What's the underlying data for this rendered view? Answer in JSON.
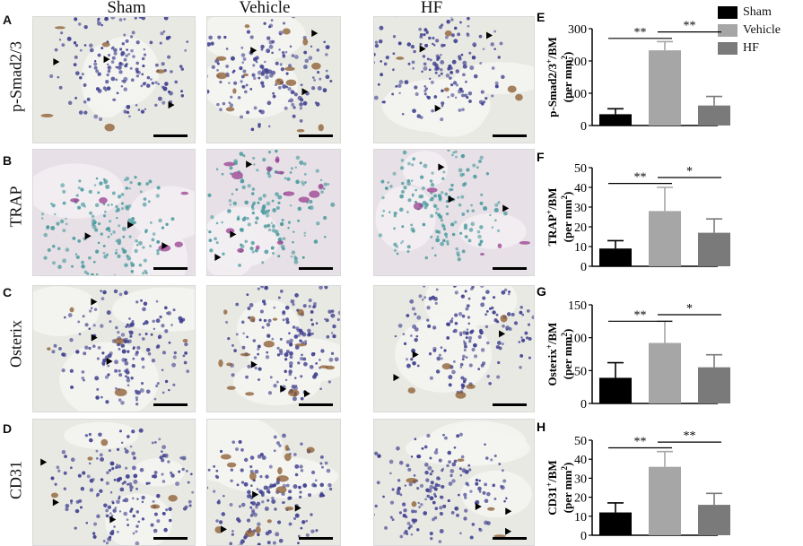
{
  "columns": [
    "Sham",
    "Vehicle",
    "HF"
  ],
  "rows": [
    {
      "letter": "A",
      "label": "p-Smad2/3"
    },
    {
      "letter": "B",
      "label": "TRAP"
    },
    {
      "letter": "C",
      "label": "Osterix"
    },
    {
      "letter": "D",
      "label": "CD31"
    }
  ],
  "legend": [
    {
      "label": "Sham",
      "color": "#000000"
    },
    {
      "label": "Vehicle",
      "color": "#a6a6a6"
    },
    {
      "label": "HF",
      "color": "#7a7a7a"
    }
  ],
  "stain_styles": {
    "ihc": {
      "bg": "#e9e9e4",
      "tissue": "#f4f4f0",
      "nuclei": "#3e3f8e",
      "positive": "#8a5a2e"
    },
    "trap": {
      "bg": "#e7e1e7",
      "tissue": "#f2eef2",
      "nuclei": "#4a9a9e",
      "positive": "#9a3d8f"
    }
  },
  "chart_data": [
    {
      "letter": "E",
      "type": "bar",
      "categories": [
        "Sham",
        "Vehicle",
        "HF"
      ],
      "values": [
        35,
        233,
        62
      ],
      "errors": [
        17,
        27,
        28
      ],
      "ylabel_main": "p-Smad2/3",
      "ylabel_sup": "+",
      "ylabel_tail": "/BM",
      "ylabel_unit": "(per mm",
      "ylabel_unit_sup": "2",
      "ylabel_unit_tail": ")",
      "ylim": [
        0,
        300
      ],
      "yticks": [
        0,
        100,
        200,
        300
      ],
      "significance": [
        {
          "from": 0,
          "to": 1,
          "label": "**",
          "y": 270
        },
        {
          "from": 1,
          "to": 2,
          "label": "**",
          "y": 290
        }
      ]
    },
    {
      "letter": "F",
      "type": "bar",
      "categories": [
        "Sham",
        "Vehicle",
        "HF"
      ],
      "values": [
        9,
        28,
        17
      ],
      "errors": [
        4,
        12,
        7
      ],
      "ylabel_main": "TRAP",
      "ylabel_sup": "+",
      "ylabel_tail": "/BM",
      "ylabel_unit": "(per mm",
      "ylabel_unit_sup": "2",
      "ylabel_unit_tail": ")",
      "ylim": [
        0,
        50
      ],
      "yticks": [
        0,
        10,
        20,
        30,
        40,
        50
      ],
      "significance": [
        {
          "from": 0,
          "to": 1,
          "label": "**",
          "y": 42
        },
        {
          "from": 1,
          "to": 2,
          "label": "*",
          "y": 45
        }
      ]
    },
    {
      "letter": "G",
      "type": "bar",
      "categories": [
        "Sham",
        "Vehicle",
        "HF"
      ],
      "values": [
        39,
        92,
        55
      ],
      "errors": [
        23,
        33,
        19
      ],
      "ylabel_main": "Osterix",
      "ylabel_sup": "+",
      "ylabel_tail": "/BM",
      "ylabel_unit": "(per mm",
      "ylabel_unit_sup": "2",
      "ylabel_unit_tail": ")",
      "ylim": [
        0,
        150
      ],
      "yticks": [
        0,
        50,
        100,
        150
      ],
      "significance": [
        {
          "from": 0,
          "to": 1,
          "label": "**",
          "y": 125
        },
        {
          "from": 1,
          "to": 2,
          "label": "*",
          "y": 135
        }
      ]
    },
    {
      "letter": "H",
      "type": "bar",
      "categories": [
        "Sham",
        "Vehicle",
        "HF"
      ],
      "values": [
        12,
        36,
        16
      ],
      "errors": [
        5,
        8,
        6
      ],
      "ylabel_main": "CD31",
      "ylabel_sup": "+",
      "ylabel_tail": "/BM",
      "ylabel_unit": "(per mm",
      "ylabel_unit_sup": "2",
      "ylabel_unit_tail": ")",
      "ylim": [
        0,
        50
      ],
      "yticks": [
        0,
        10,
        20,
        30,
        40,
        50
      ],
      "significance": [
        {
          "from": 0,
          "to": 1,
          "label": "**",
          "y": 46
        },
        {
          "from": 1,
          "to": 2,
          "label": "**",
          "y": 49
        }
      ]
    }
  ]
}
